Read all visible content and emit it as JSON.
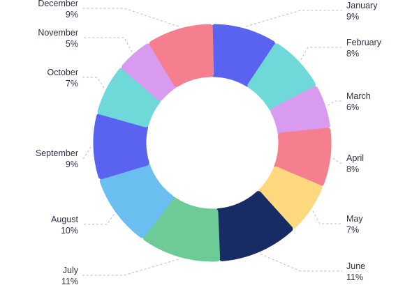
{
  "chart_data": {
    "type": "pie",
    "variant": "donut",
    "title": "",
    "categories": [
      "January",
      "February",
      "March",
      "April",
      "May",
      "June",
      "July",
      "August",
      "September",
      "October",
      "November",
      "December"
    ],
    "values": [
      9,
      8,
      6,
      8,
      7,
      11,
      11,
      10,
      9,
      7,
      5,
      9
    ],
    "value_labels": [
      "9%",
      "8%",
      "6%",
      "8%",
      "7%",
      "11%",
      "11%",
      "10%",
      "9%",
      "7%",
      "5%",
      "9%"
    ],
    "colors": [
      "#5a63f0",
      "#6fd8d8",
      "#d99bf0",
      "#f57f8e",
      "#ffd880",
      "#172c64",
      "#6ccb97",
      "#6bbef0",
      "#5a63f0",
      "#6fd8d8",
      "#d99bf0",
      "#f57f8e"
    ],
    "legend": "none",
    "grid": false
  }
}
